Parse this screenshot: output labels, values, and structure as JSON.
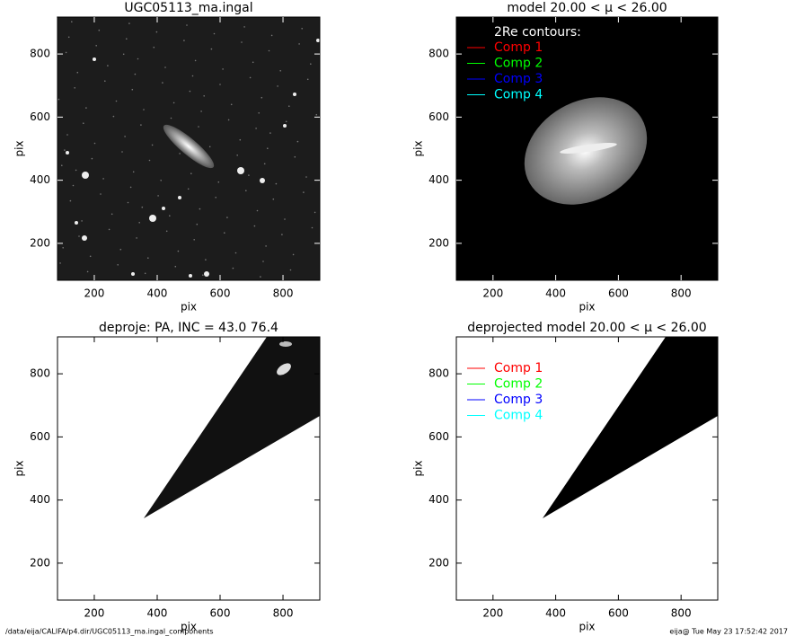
{
  "chart_data": [
    {
      "type": "image",
      "title": "UGC05113_ma.ingal",
      "xlabel": "pix",
      "ylabel": "pix",
      "xlim": [
        83,
        917
      ],
      "ylim": [
        83,
        917
      ],
      "xticks": [
        200,
        400,
        600,
        800
      ],
      "yticks": [
        200,
        400,
        600,
        800
      ]
    },
    {
      "type": "image",
      "title": "model  20.00 < μ <  26.00",
      "xlabel": "pix",
      "ylabel": "pix",
      "xlim": [
        83,
        917
      ],
      "ylim": [
        83,
        917
      ],
      "xticks": [
        200,
        400,
        600,
        800
      ],
      "yticks": [
        200,
        400,
        600,
        800
      ],
      "legend": {
        "title": "2Re contours:",
        "series": [
          {
            "name": "Comp 1",
            "color": "#ff0000"
          },
          {
            "name": "Comp 2",
            "color": "#00ff00"
          },
          {
            "name": "Comp 3",
            "color": "#0000ff"
          },
          {
            "name": "Comp 4",
            "color": "#00ffff"
          }
        ]
      }
    },
    {
      "type": "image",
      "title": "deproje: PA, INC =  43.0    76.4",
      "xlabel": "pix",
      "ylabel": "pix",
      "xlim": [
        83,
        917
      ],
      "ylim": [
        83,
        917
      ],
      "xticks": [
        200,
        400,
        600,
        800
      ],
      "yticks": [
        200,
        400,
        600,
        800
      ]
    },
    {
      "type": "image",
      "title": "deprojected model  20.00 < μ <  26.00",
      "xlabel": "pix",
      "ylabel": "pix",
      "xlim": [
        83,
        917
      ],
      "ylim": [
        83,
        917
      ],
      "xticks": [
        200,
        400,
        600,
        800
      ],
      "yticks": [
        200,
        400,
        600,
        800
      ],
      "legend": {
        "series": [
          {
            "name": "Comp 1",
            "color": "#ff0000"
          },
          {
            "name": "Comp 2",
            "color": "#00ff00"
          },
          {
            "name": "Comp 3",
            "color": "#0000ff"
          },
          {
            "name": "Comp 4",
            "color": "#00ffff"
          }
        ]
      }
    }
  ],
  "footer": {
    "path": "/data/eija/CALIFA/p4.dir/UGC05113_ma.ingal_components",
    "stamp": "eija@  Tue May 23 17:52:42 2017"
  }
}
